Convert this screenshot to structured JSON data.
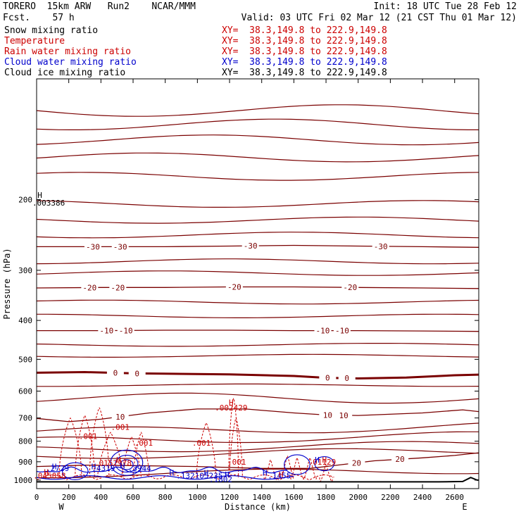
{
  "header": {
    "model": "TORERO  15km ARW   Run2    NCAR/MMM",
    "fcst": "Fcst.    57 h",
    "init": "Init: 18 UTC Tue 28 Feb 12",
    "valid": "Valid: 03 UTC Fri 02 Mar 12 (21 CST Thu 01 Mar 12)"
  },
  "fields": [
    {
      "label": "Snow mixing ratio",
      "xy": "XY=  38.3,149.8 to 222.9,149.8",
      "color": "#000000"
    },
    {
      "label": "Temperature",
      "xy": "XY=  38.3,149.8 to 222.9,149.8",
      "color": "#cc0000"
    },
    {
      "label": "Rain water mixing ratio",
      "xy": "XY=  38.3,149.8 to 222.9,149.8",
      "color": "#cc0000"
    },
    {
      "label": "Cloud water mixing ratio",
      "xy": "XY=  38.3,149.8 to 222.9,149.8",
      "color": "#0000cc"
    },
    {
      "label": "Cloud ice mixing ratio",
      "xy": "XY=  38.3,149.8 to 222.9,149.8",
      "color": "#000000"
    }
  ],
  "chart_data": {
    "type": "contour-cross-section",
    "xlabel": "Distance (km)",
    "ylabel": "Pressure (hPa)",
    "xlim": [
      0,
      2750
    ],
    "ylim": [
      1050,
      100
    ],
    "y_scale": "log",
    "x_ticks": [
      0,
      200,
      400,
      600,
      800,
      1000,
      1200,
      1400,
      1600,
      1800,
      2000,
      2200,
      2400,
      2600
    ],
    "y_ticks": [
      200,
      300,
      400,
      500,
      600,
      700,
      800,
      900,
      1000
    ],
    "end_labels": {
      "left": "W",
      "right": "E"
    },
    "colors": {
      "temperature": "#7a0000",
      "rain": "#cc0000",
      "cloud_water": "#0000cc",
      "terrain": "#000000"
    },
    "temperature_isotherms": [
      {
        "label": "-30",
        "points": [
          [
            0,
            262
          ],
          [
            400,
            262
          ],
          [
            800,
            262
          ],
          [
            1200,
            261
          ],
          [
            1600,
            260
          ],
          [
            2000,
            261
          ],
          [
            2400,
            262
          ],
          [
            2750,
            263
          ]
        ],
        "labels_at": [
          350,
          520,
          1330,
          2140
        ]
      },
      {
        "label": "-20",
        "points": [
          [
            0,
            332
          ],
          [
            400,
            331
          ],
          [
            800,
            331
          ],
          [
            1200,
            330
          ],
          [
            1600,
            330
          ],
          [
            2000,
            331
          ],
          [
            2400,
            332
          ],
          [
            2750,
            333
          ]
        ],
        "labels_at": [
          330,
          505,
          1230,
          1950
        ]
      },
      {
        "label": "-10",
        "points": [
          [
            0,
            424
          ],
          [
            400,
            424
          ],
          [
            800,
            423
          ],
          [
            1200,
            423
          ],
          [
            1600,
            424
          ],
          [
            2000,
            424
          ],
          [
            2400,
            425
          ],
          [
            2750,
            426
          ]
        ],
        "labels_at": [
          435,
          555,
          1780,
          1900
        ]
      },
      {
        "label": "0",
        "points": [
          [
            0,
            540
          ],
          [
            300,
            538
          ],
          [
            600,
            542
          ],
          [
            800,
            543
          ],
          [
            1200,
            545
          ],
          [
            1600,
            550
          ],
          [
            1800,
            556
          ],
          [
            2000,
            558
          ],
          [
            2300,
            555
          ],
          [
            2600,
            548
          ],
          [
            2750,
            546
          ]
        ],
        "labels_at": [
          490,
          625,
          1810,
          1930
        ]
      },
      {
        "label": "10",
        "points": [
          [
            0,
            702
          ],
          [
            200,
            715
          ],
          [
            400,
            705
          ],
          [
            700,
            680
          ],
          [
            1000,
            665
          ],
          [
            1300,
            665
          ],
          [
            1600,
            680
          ],
          [
            1800,
            688
          ],
          [
            2000,
            690
          ],
          [
            2400,
            680
          ],
          [
            2650,
            668
          ],
          [
            2750,
            675
          ]
        ],
        "labels_at": [
          520,
          1810,
          1910
        ]
      },
      {
        "label": "20",
        "points": [
          [
            0,
            925
          ],
          [
            300,
            918
          ],
          [
            600,
            920
          ],
          [
            1000,
            925
          ],
          [
            1400,
            935
          ],
          [
            1700,
            935
          ],
          [
            1900,
            915
          ],
          [
            2100,
            895
          ],
          [
            2400,
            880
          ],
          [
            2600,
            868
          ],
          [
            2750,
            855
          ]
        ],
        "labels_at": [
          1990,
          2260
        ]
      }
    ],
    "rain_labels": [
      {
        "text": ".001",
        "x": 320,
        "p": 790
      },
      {
        "text": ".001",
        "x": 520,
        "p": 750
      },
      {
        "text": ".001",
        "x": 665,
        "p": 820
      },
      {
        "text": ".001",
        "x": 1025,
        "p": 820
      },
      {
        "text": ".001",
        "x": 1245,
        "p": 915
      },
      {
        "text": ".002429",
        "x": 1210,
        "p": 670
      },
      {
        "text": ".0152978",
        "x": 475,
        "p": 920
      },
      {
        "text": ".01129",
        "x": 1775,
        "p": 915
      },
      {
        "text": ".045058",
        "x": 80,
        "p": 990
      }
    ],
    "cloud_water_labels": [
      {
        "text": ".2729",
        "x": 130,
        "p": 950
      },
      {
        "text": ".4319",
        "x": 415,
        "p": 950
      },
      {
        "text": ".3944",
        "x": 640,
        "p": 950
      },
      {
        "text": ".1321",
        "x": 940,
        "p": 990
      },
      {
        "text": "05235",
        "x": 1085,
        "p": 990
      },
      {
        "text": ".1802",
        "x": 1145,
        "p": 1010
      },
      {
        "text": ".1455",
        "x": 1510,
        "p": 990
      }
    ],
    "snow_labels": [
      {
        "text": ".003386",
        "x": 75,
        "p": 207
      }
    ],
    "h_labels": [
      {
        "x": 20,
        "p": 198,
        "color": "#000000"
      },
      {
        "x": 110,
        "p": 940,
        "color": "#0000cc"
      },
      {
        "x": 355,
        "p": 940,
        "color": "#0000cc"
      },
      {
        "x": 535,
        "p": 935,
        "color": "#0000cc"
      },
      {
        "x": 840,
        "p": 975,
        "color": "#0000cc"
      },
      {
        "x": 1055,
        "p": 975,
        "color": "#0000cc"
      },
      {
        "x": 1185,
        "p": 985,
        "color": "#0000cc"
      },
      {
        "x": 1420,
        "p": 975,
        "color": "#0000cc"
      },
      {
        "x": 1745,
        "p": 905,
        "color": "#0000cc"
      },
      {
        "x": 60,
        "p": 970,
        "color": "#cc0000"
      },
      {
        "x": 510,
        "p": 905,
        "color": "#cc0000"
      },
      {
        "x": 1210,
        "p": 650,
        "color": "#cc0000"
      },
      {
        "x": 1790,
        "p": 905,
        "color": "#cc0000"
      },
      {
        "x": 1520,
        "p": 985,
        "color": "#cc0000"
      }
    ],
    "terrain": [
      [
        0,
        1010
      ],
      [
        500,
        1010
      ],
      [
        1000,
        1010
      ],
      [
        1500,
        1010
      ],
      [
        2000,
        1010
      ],
      [
        2500,
        1010
      ],
      [
        2650,
        1008
      ],
      [
        2700,
        985
      ],
      [
        2740,
        1000
      ],
      [
        2750,
        1000
      ]
    ]
  }
}
